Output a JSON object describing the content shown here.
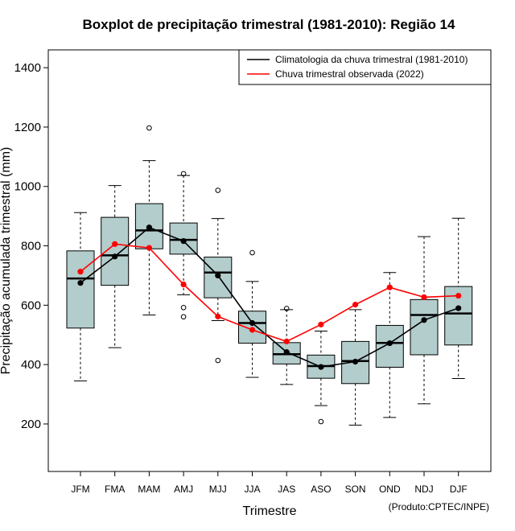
{
  "chart_data": {
    "type": "boxplot",
    "title": "Boxplot de precipitação trimestral (1981-2010): Região 14",
    "xlabel": "Trimestre",
    "ylabel": "Precipitação acumulada trimestral (mm)",
    "ylim": [
      40,
      1460
    ],
    "yticks": [
      200,
      400,
      600,
      800,
      1000,
      1200,
      1400
    ],
    "categories": [
      "JFM",
      "FMA",
      "MAM",
      "AMJ",
      "MJJ",
      "JJA",
      "JAS",
      "ASO",
      "SON",
      "OND",
      "NDJ",
      "DJF"
    ],
    "boxes": [
      {
        "whisker_low": 345,
        "q1": 523,
        "median": 690,
        "q3": 783,
        "whisker_high": 912,
        "outliers": []
      },
      {
        "whisker_low": 457,
        "q1": 667,
        "median": 768,
        "q3": 896,
        "whisker_high": 1003,
        "outliers": []
      },
      {
        "whisker_low": 567,
        "q1": 790,
        "median": 852,
        "q3": 942,
        "whisker_high": 1087,
        "outliers": [
          1197
        ]
      },
      {
        "whisker_low": 635,
        "q1": 772,
        "median": 820,
        "q3": 877,
        "whisker_high": 1037,
        "outliers": [
          1043,
          592,
          561
        ]
      },
      {
        "whisker_low": 548,
        "q1": 625,
        "median": 710,
        "q3": 762,
        "whisker_high": 892,
        "outliers": [
          987,
          414
        ]
      },
      {
        "whisker_low": 357,
        "q1": 472,
        "median": 540,
        "q3": 580,
        "whisker_high": 680,
        "outliers": [
          777
        ]
      },
      {
        "whisker_low": 333,
        "q1": 402,
        "median": 435,
        "q3": 474,
        "whisker_high": 585,
        "outliers": [
          589
        ]
      },
      {
        "whisker_low": 262,
        "q1": 354,
        "median": 395,
        "q3": 432,
        "whisker_high": 513,
        "outliers": [
          208
        ]
      },
      {
        "whisker_low": 196,
        "q1": 336,
        "median": 412,
        "q3": 478,
        "whisker_high": 585,
        "outliers": []
      },
      {
        "whisker_low": 222,
        "q1": 391,
        "median": 473,
        "q3": 532,
        "whisker_high": 710,
        "outliers": []
      },
      {
        "whisker_low": 268,
        "q1": 433,
        "median": 567,
        "q3": 619,
        "whisker_high": 831,
        "outliers": []
      },
      {
        "whisker_low": 353,
        "q1": 466,
        "median": 572,
        "q3": 663,
        "whisker_high": 893,
        "outliers": []
      }
    ],
    "series": [
      {
        "name": "Climatologia da chuva trimestral (1981-2010)",
        "color": "#000000",
        "values": [
          675,
          764,
          862,
          816,
          700,
          540,
          442,
          392,
          410,
          472,
          550,
          590
        ]
      },
      {
        "name": "Chuva trimestral observada (2022)",
        "color": "#ff0000",
        "values": [
          713,
          806,
          793,
          670,
          562,
          517,
          478,
          535,
          602,
          660,
          627,
          632
        ]
      }
    ],
    "box_fill": "#b3cccc",
    "legend_position": "top-right",
    "credit": "(Produto:CPTEC/INPE)"
  }
}
